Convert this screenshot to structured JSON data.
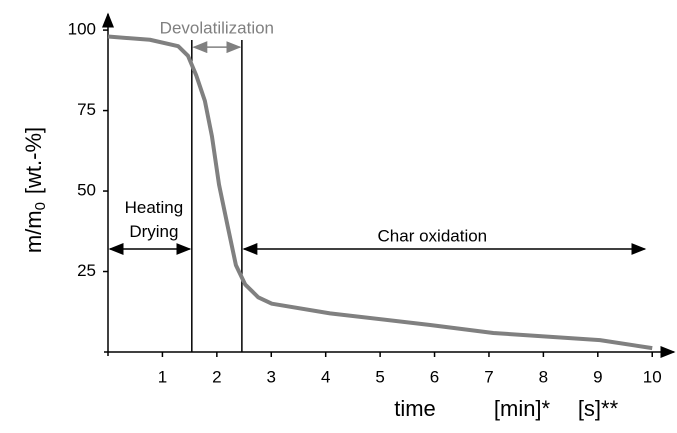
{
  "chart_data": {
    "type": "line",
    "ylabel": [
      "m/m",
      "0",
      "[wt.-%]"
    ],
    "xlabel": [
      "time",
      "[min]*",
      "[s]**"
    ],
    "x": [
      0,
      0.77,
      1.29,
      1.47,
      1.62,
      1.78,
      1.91,
      2.04,
      2.2,
      2.35,
      2.52,
      2.76,
      3.01,
      4.08,
      5.92,
      7.08,
      9.04,
      10
    ],
    "series": [
      {
        "color": "#808080",
        "values": [
          98,
          97,
          95,
          92,
          86,
          78,
          67,
          52,
          39,
          27,
          21,
          17,
          15,
          12,
          8.4,
          5.9,
          3.7,
          1.2
        ]
      }
    ],
    "xlim": [
      0,
      10.4
    ],
    "xticks": [
      1,
      2,
      3,
      4,
      5,
      6,
      7,
      8,
      9,
      10
    ],
    "ylim": [
      0,
      105
    ],
    "yticks": [
      25,
      50,
      75,
      100
    ],
    "vlines": [
      1.54,
      2.46
    ],
    "annotations": [
      {
        "text": "Devolatilization",
        "x_start": 1.54,
        "x_end": 2.46,
        "y": 94.7,
        "color": "#808080"
      },
      {
        "text": "Heating Drying",
        "x_start": 0,
        "x_end": 1.54,
        "y": 32,
        "color": "#000000"
      },
      {
        "text": "Char oxidation",
        "x_start": 2.46,
        "x_end": 9.9,
        "y": 32,
        "color": "#000000"
      }
    ]
  }
}
